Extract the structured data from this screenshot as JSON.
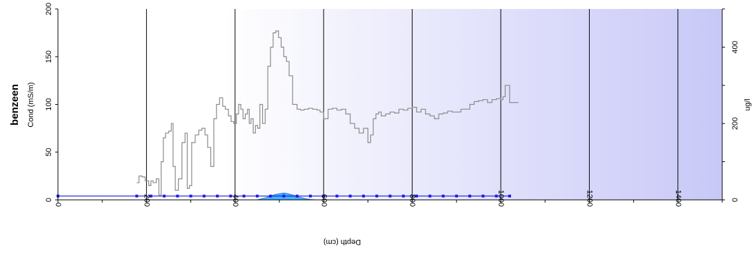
{
  "chart_data": {
    "type": "line",
    "title": "benzeen",
    "xlabel": "Depth (cm)",
    "ylabel_left": "Cond (mS/m)",
    "ylabel_right": "ug/l",
    "xlim": [
      0,
      1500
    ],
    "ylim_left": [
      0,
      200
    ],
    "ylim_right": [
      0,
      500
    ],
    "x_ticks": [
      0,
      200,
      400,
      600,
      800,
      1000,
      1200,
      1400
    ],
    "y_left_ticks": [
      0,
      50,
      100,
      150,
      200
    ],
    "y_right_ticks": [
      0,
      200,
      400
    ],
    "grid": "vertical",
    "background": "white-to-lavender gradient",
    "series": [
      {
        "axis": "left",
        "color": "#8a8a8a",
        "style": "step",
        "x": [
          178,
          183,
          190,
          197,
          205,
          210,
          215,
          222,
          228,
          233,
          238,
          243,
          250,
          256,
          260,
          265,
          272,
          280,
          287,
          292,
          297,
          302,
          310,
          318,
          325,
          332,
          338,
          345,
          352,
          358,
          365,
          372,
          378,
          385,
          391,
          397,
          403,
          408,
          413,
          418,
          423,
          428,
          432,
          436,
          441,
          446,
          451,
          456,
          462,
          468,
          474,
          480,
          486,
          492,
          498,
          504,
          510,
          516,
          522,
          530,
          540,
          548,
          556,
          566,
          575,
          585,
          592,
          600,
          610,
          620,
          630,
          640,
          650,
          660,
          670,
          680,
          690,
          700,
          706,
          712,
          718,
          724,
          730,
          740,
          750,
          760,
          770,
          780,
          790,
          800,
          810,
          820,
          830,
          840,
          850,
          860,
          870,
          880,
          890,
          900,
          910,
          920,
          930,
          940,
          950,
          960,
          970,
          980,
          990,
          1000,
          1005,
          1010,
          1020,
          1030,
          1040
        ],
        "values": [
          18,
          25,
          24,
          20,
          15,
          20,
          18,
          22,
          5,
          40,
          65,
          70,
          72,
          80,
          35,
          10,
          22,
          60,
          70,
          12,
          15,
          60,
          68,
          73,
          75,
          68,
          55,
          35,
          85,
          100,
          107,
          98,
          95,
          88,
          82,
          80,
          90,
          100,
          95,
          85,
          90,
          95,
          80,
          85,
          70,
          78,
          75,
          100,
          80,
          95,
          140,
          160,
          175,
          177,
          170,
          160,
          150,
          145,
          130,
          100,
          95,
          94,
          95,
          96,
          95,
          94,
          92,
          85,
          95,
          96,
          94,
          95,
          90,
          80,
          75,
          70,
          75,
          60,
          68,
          85,
          90,
          92,
          88,
          90,
          92,
          91,
          95,
          94,
          96,
          97,
          92,
          95,
          90,
          88,
          85,
          90,
          91,
          93,
          92,
          92,
          95,
          95,
          100,
          103,
          104,
          105,
          102,
          105,
          106,
          105,
          108,
          120,
          102,
          102,
          102
        ]
      },
      {
        "axis": "right",
        "color": "#1a1ae6",
        "style": "line-markers",
        "x": [
          0,
          178,
          210,
          240,
          270,
          300,
          330,
          360,
          390,
          420,
          450,
          480,
          510,
          540,
          570,
          600,
          630,
          660,
          690,
          720,
          750,
          780,
          810,
          840,
          870,
          900,
          930,
          960,
          990,
          1020
        ],
        "values": [
          10,
          10,
          10,
          10,
          10,
          10,
          10,
          10,
          10,
          10,
          10,
          10,
          10,
          10,
          10,
          10,
          10,
          10,
          10,
          10,
          10,
          10,
          10,
          10,
          10,
          10,
          10,
          10,
          10,
          10
        ]
      },
      {
        "axis": "right",
        "color": "#33a8ff",
        "style": "area",
        "x": [
          450,
          460,
          470,
          480,
          490,
          500,
          510,
          520,
          530,
          540,
          550,
          560,
          570,
          580,
          590
        ],
        "values": [
          0,
          3,
          6,
          10,
          14,
          16,
          18,
          16,
          13,
          9,
          6,
          3,
          1,
          0,
          0
        ]
      }
    ]
  }
}
